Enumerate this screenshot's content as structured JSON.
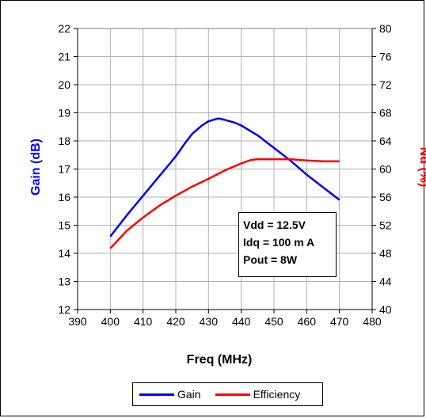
{
  "chart_data": {
    "type": "line",
    "title": "",
    "xlabel": "Freq (MHz)",
    "ylabel_left": "Gain (dB)",
    "ylabel_right": "Nd (%)",
    "xlim": [
      390,
      480
    ],
    "ylim_left": [
      12,
      22
    ],
    "ylim_right": [
      40,
      80
    ],
    "x_ticks": [
      390,
      400,
      410,
      420,
      430,
      440,
      450,
      460,
      470,
      480
    ],
    "y_ticks_left": [
      12,
      13,
      14,
      15,
      16,
      17,
      18,
      19,
      20,
      21,
      22
    ],
    "y_ticks_right": [
      40,
      44,
      48,
      52,
      56,
      60,
      64,
      68,
      72,
      76,
      80
    ],
    "grid": true,
    "legend_position": "bottom",
    "series": [
      {
        "name": "Gain",
        "axis": "left",
        "color": "#0000ff",
        "x": [
          400,
          405,
          410,
          415,
          420,
          423,
          425,
          428,
          430,
          433,
          435,
          438,
          440,
          445,
          450,
          455,
          460,
          465,
          470
        ],
        "y": [
          14.6,
          15.35,
          16.05,
          16.75,
          17.45,
          17.95,
          18.25,
          18.55,
          18.7,
          18.8,
          18.75,
          18.65,
          18.55,
          18.2,
          17.75,
          17.3,
          16.8,
          16.35,
          15.9
        ]
      },
      {
        "name": "Efficiency",
        "axis": "right",
        "color": "#ff0000",
        "x": [
          400,
          405,
          410,
          415,
          420,
          425,
          430,
          435,
          440,
          443,
          445,
          450,
          455,
          460,
          465,
          470
        ],
        "y": [
          48.7,
          51.2,
          53.1,
          54.8,
          56.2,
          57.5,
          58.6,
          59.8,
          60.8,
          61.3,
          61.4,
          61.4,
          61.4,
          61.2,
          61.1,
          61.1
        ]
      }
    ],
    "annotation": [
      "Vdd = 12.5V",
      "Idq = 100 m A",
      "Pout = 8W"
    ]
  }
}
